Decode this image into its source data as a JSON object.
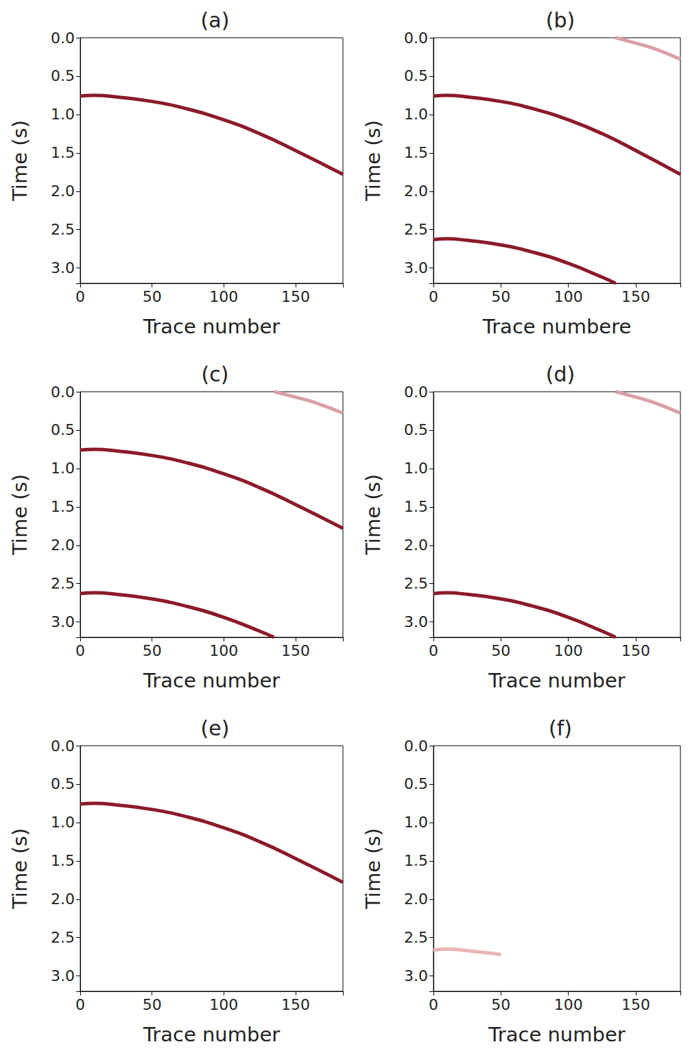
{
  "chart_data": [
    {
      "type": "line",
      "title": "(a)",
      "x_label": "Trace number",
      "y_label": "Time (s)",
      "xlim": [
        0,
        183
      ],
      "ylim": [
        0,
        3.2
      ],
      "xticks": [
        0,
        50,
        100,
        150
      ],
      "yticks": [
        {
          "value": 0,
          "label": "0.0"
        },
        {
          "value": 0.5,
          "label": "0.5"
        },
        {
          "value": 1,
          "label": "1.0"
        },
        {
          "value": 1.5,
          "label": "1.5"
        },
        {
          "value": 2,
          "label": "2.0"
        },
        {
          "value": 2.5,
          "label": "2.5"
        },
        {
          "value": 3,
          "label": "3.0"
        }
      ],
      "grid": false,
      "series": [
        {
          "color": "#8b1a2b",
          "x": [
            0,
            10,
            25,
            50,
            75,
            100,
            125,
            150,
            183
          ],
          "values": [
            0.76,
            0.75,
            0.77,
            0.83,
            0.93,
            1.07,
            1.25,
            1.47,
            1.78
          ]
        }
      ]
    },
    {
      "type": "line",
      "title": "(b)",
      "x_label": "Trace numbere",
      "y_label": "Time (s)",
      "xlim": [
        0,
        183
      ],
      "ylim": [
        0,
        3.2
      ],
      "xticks": [
        0,
        50,
        100,
        150
      ],
      "yticks": [
        {
          "value": 0,
          "label": "0.0"
        },
        {
          "value": 0.5,
          "label": "0.5"
        },
        {
          "value": 1,
          "label": "1.0"
        },
        {
          "value": 1.5,
          "label": "1.5"
        },
        {
          "value": 2,
          "label": "2.0"
        },
        {
          "value": 2.5,
          "label": "2.5"
        },
        {
          "value": 3,
          "label": "3.0"
        }
      ],
      "grid": false,
      "series": [
        {
          "color": "#d9a0a8",
          "x": [
            135,
            150,
            165,
            183
          ],
          "values": [
            0.0,
            0.07,
            0.15,
            0.28
          ]
        },
        {
          "color": "#8b1a2b",
          "x": [
            0,
            10,
            25,
            50,
            75,
            100,
            125,
            150,
            183
          ],
          "values": [
            0.76,
            0.75,
            0.77,
            0.83,
            0.93,
            1.07,
            1.25,
            1.47,
            1.78
          ]
        },
        {
          "color": "#8b1a2b",
          "x": [
            0,
            10,
            25,
            50,
            75,
            100,
            125,
            135
          ],
          "values": [
            2.63,
            2.62,
            2.64,
            2.7,
            2.8,
            2.94,
            3.12,
            3.2
          ]
        }
      ]
    },
    {
      "type": "line",
      "title": "(c)",
      "x_label": "Trace number",
      "y_label": "Time (s)",
      "xlim": [
        0,
        183
      ],
      "ylim": [
        0,
        3.2
      ],
      "xticks": [
        0,
        50,
        100,
        150
      ],
      "yticks": [
        {
          "value": 0,
          "label": "0.0"
        },
        {
          "value": 0.5,
          "label": "0.5"
        },
        {
          "value": 1,
          "label": "1.0"
        },
        {
          "value": 1.5,
          "label": "1.5"
        },
        {
          "value": 2,
          "label": "2.0"
        },
        {
          "value": 2.5,
          "label": "2.5"
        },
        {
          "value": 3,
          "label": "3.0"
        }
      ],
      "grid": false,
      "series": [
        {
          "color": "#d9a0a8",
          "x": [
            135,
            150,
            165,
            183
          ],
          "values": [
            0.0,
            0.07,
            0.15,
            0.28
          ]
        },
        {
          "color": "#8b1a2b",
          "x": [
            0,
            10,
            25,
            50,
            75,
            100,
            125,
            150,
            183
          ],
          "values": [
            0.76,
            0.75,
            0.77,
            0.83,
            0.93,
            1.07,
            1.25,
            1.47,
            1.78
          ]
        },
        {
          "color": "#8b1a2b",
          "x": [
            0,
            10,
            25,
            50,
            75,
            100,
            125,
            135
          ],
          "values": [
            2.63,
            2.62,
            2.64,
            2.7,
            2.8,
            2.94,
            3.12,
            3.2
          ]
        }
      ]
    },
    {
      "type": "line",
      "title": "(d)",
      "x_label": "Trace number",
      "y_label": "Time (s)",
      "xlim": [
        0,
        183
      ],
      "ylim": [
        0,
        3.2
      ],
      "xticks": [
        0,
        50,
        100,
        150
      ],
      "yticks": [
        {
          "value": 0,
          "label": "0.0"
        },
        {
          "value": 0.5,
          "label": "0.5"
        },
        {
          "value": 1,
          "label": "1.0"
        },
        {
          "value": 1.5,
          "label": "1.5"
        },
        {
          "value": 2,
          "label": "2.0"
        },
        {
          "value": 2.5,
          "label": "2.5"
        },
        {
          "value": 3,
          "label": "3.0"
        }
      ],
      "grid": false,
      "series": [
        {
          "color": "#d9a0a8",
          "x": [
            135,
            150,
            165,
            183
          ],
          "values": [
            0.0,
            0.07,
            0.15,
            0.28
          ]
        },
        {
          "color": "#8b1a2b",
          "x": [
            0,
            10,
            25,
            50,
            75,
            100,
            125,
            135
          ],
          "values": [
            2.63,
            2.62,
            2.64,
            2.7,
            2.8,
            2.94,
            3.12,
            3.2
          ]
        }
      ]
    },
    {
      "type": "line",
      "title": "(e)",
      "x_label": "Trace number",
      "y_label": "Time (s)",
      "xlim": [
        0,
        183
      ],
      "ylim": [
        0,
        3.2
      ],
      "xticks": [
        0,
        50,
        100,
        150
      ],
      "yticks": [
        {
          "value": 0,
          "label": "0.0"
        },
        {
          "value": 0.5,
          "label": "0.5"
        },
        {
          "value": 1,
          "label": "1.0"
        },
        {
          "value": 1.5,
          "label": "1.5"
        },
        {
          "value": 2,
          "label": "2.0"
        },
        {
          "value": 2.5,
          "label": "2.5"
        },
        {
          "value": 3,
          "label": "3.0"
        }
      ],
      "grid": false,
      "series": [
        {
          "color": "#8b1a2b",
          "x": [
            0,
            10,
            25,
            50,
            75,
            100,
            125,
            150,
            183
          ],
          "values": [
            0.76,
            0.75,
            0.77,
            0.83,
            0.93,
            1.07,
            1.25,
            1.47,
            1.78
          ]
        }
      ]
    },
    {
      "type": "line",
      "title": "(f)",
      "x_label": "Trace number",
      "y_label": "Time (s)",
      "xlim": [
        0,
        183
      ],
      "ylim": [
        0,
        3.2
      ],
      "xticks": [
        0,
        50,
        100,
        150
      ],
      "yticks": [
        {
          "value": 0,
          "label": "0.0"
        },
        {
          "value": 0.5,
          "label": "0.5"
        },
        {
          "value": 1,
          "label": "1.0"
        },
        {
          "value": 1.5,
          "label": "1.5"
        },
        {
          "value": 2,
          "label": "2.0"
        },
        {
          "value": 2.5,
          "label": "2.5"
        },
        {
          "value": 3,
          "label": "3.0"
        }
      ],
      "grid": false,
      "series": [
        {
          "color": "#e8b4b4",
          "x": [
            0,
            10,
            25,
            50
          ],
          "values": [
            2.66,
            2.65,
            2.67,
            2.72
          ]
        }
      ]
    }
  ]
}
